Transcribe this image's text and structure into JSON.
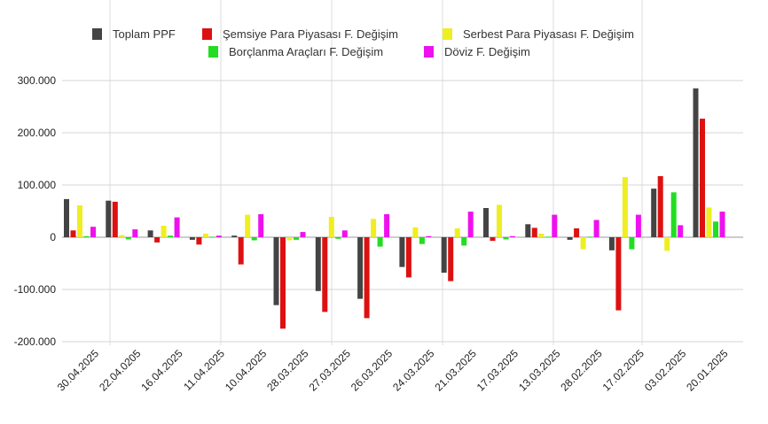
{
  "chart_data": {
    "type": "bar",
    "title": "",
    "xlabel": "",
    "ylabel": "",
    "ylim": [
      -200000,
      300000
    ],
    "yticks": [
      -200000,
      -100000,
      0,
      100000,
      200000,
      300000
    ],
    "ytick_labels": [
      "-200.000",
      "-100.000",
      "0",
      "100.000",
      "200.000",
      "300.000"
    ],
    "categories": [
      "30.04.2025",
      "22.04.0205",
      "16.04.2025",
      "11.04.2025",
      "10.04.2025",
      "28.03.2025",
      "27.03.2025",
      "26.03.2025",
      "24.03.2025",
      "21.03.2025",
      "17.03.2025",
      "13.03.2025",
      "28.02.2025",
      "17.02.2025",
      "03.02.2025",
      "20.01.2025"
    ],
    "series": [
      {
        "name": "Toplam PPF",
        "color": "#444444",
        "values": [
          73000,
          70000,
          13000,
          -5000,
          3000,
          -130000,
          -103000,
          -118000,
          -57000,
          -68000,
          56000,
          25000,
          -5000,
          -25000,
          93000,
          285000
        ]
      },
      {
        "name": "Şemsiye Para Piyasası F. Değişim",
        "color": "#dd1111",
        "values": [
          13000,
          68000,
          -10000,
          -14000,
          -52000,
          -175000,
          -143000,
          -155000,
          -77000,
          -84000,
          -7000,
          18000,
          17000,
          -140000,
          117000,
          227000
        ]
      },
      {
        "name": "Serbest Para Piyasası F. Değişim",
        "color": "#eeee22",
        "values": [
          61000,
          4000,
          22000,
          7000,
          43000,
          -6000,
          39000,
          35000,
          19000,
          17000,
          62000,
          7000,
          -23000,
          115000,
          -26000,
          57000
        ]
      },
      {
        "name": "Borçlanma Araçları F. Değişim",
        "color": "#22dd22",
        "values": [
          2000,
          -4000,
          3000,
          1000,
          -6000,
          -5000,
          -3000,
          -18000,
          -13000,
          -16000,
          -4000,
          1000,
          1000,
          -23000,
          86000,
          30000
        ]
      },
      {
        "name": "Döviz F. Değişim",
        "color": "#ee11ee",
        "values": [
          20000,
          15000,
          38000,
          3000,
          44000,
          10000,
          13000,
          44000,
          2000,
          49000,
          2000,
          43000,
          33000,
          43000,
          23000,
          49000
        ]
      }
    ],
    "grid": true,
    "legend_position": "top-center"
  }
}
